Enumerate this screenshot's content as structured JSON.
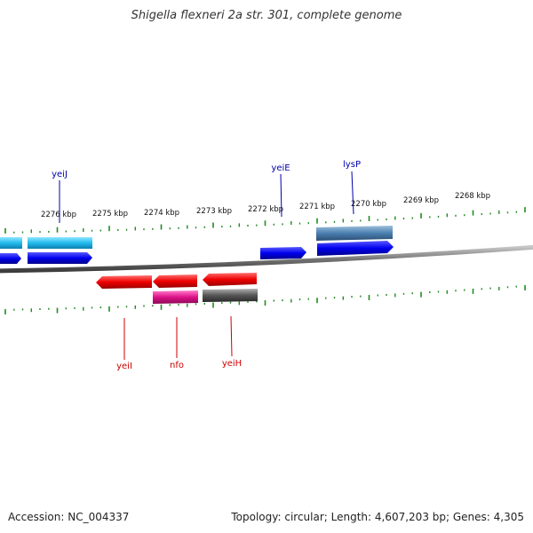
{
  "title": "Shigella flexneri 2a str. 301, complete genome",
  "accession": "Accession: NC_004337",
  "summary": "Topology: circular; Length: 4,607,203 bp; Genes: 4,305",
  "scale_labels": [
    "2276 kbp",
    "2275 kbp",
    "2274 kbp",
    "2273 kbp",
    "2272 kbp",
    "2271 kbp",
    "2270 kbp",
    "2269 kbp",
    "2268 kbp"
  ],
  "genes_forward_labeled": [
    {
      "name": "yeiJ",
      "color": "#0000aa"
    },
    {
      "name": "yeiE",
      "color": "#0000aa"
    },
    {
      "name": "lysP",
      "color": "#0000aa"
    }
  ],
  "genes_reverse_labeled": [
    {
      "name": "yeiI",
      "color": "#cc0000"
    },
    {
      "name": "nfo",
      "color": "#cc0000"
    },
    {
      "name": "yeiH",
      "color": "#cc0000"
    }
  ],
  "colors": {
    "backbone": "#777777",
    "tick": "#228b22",
    "forward_cds": "#0000ee",
    "forward_gene": "#22bbee",
    "forward_gene_alt": "#4a7fb0",
    "reverse_cds": "#ee0000",
    "reverse_gene_pink": "#dd1188",
    "reverse_gene_gray": "#555555",
    "forward_label": "#0000aa",
    "reverse_label": "#cc0000"
  }
}
